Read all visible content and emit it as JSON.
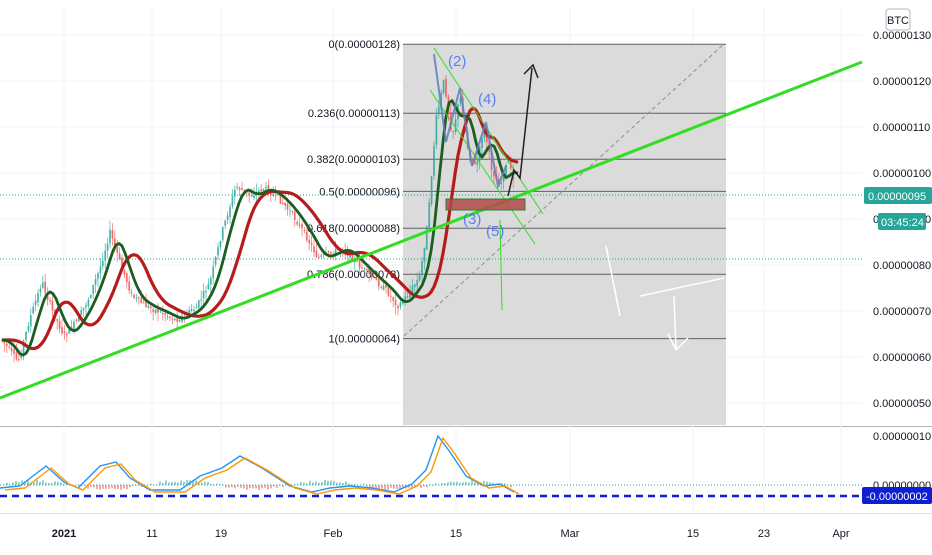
{
  "header": {
    "currency_badge": "BTC"
  },
  "chart_data": [
    {
      "type": "candlestick",
      "ylim": [
        4.5e-07,
        1.33e-06
      ],
      "y_ticks": [
        "0.00000130",
        "0.00000120",
        "0.00000110",
        "0.00000100",
        "0.00000090",
        "0.00000080",
        "0.00000070",
        "0.00000060",
        "0.00000050"
      ],
      "x_ticks": [
        {
          "label": "2021",
          "bold": true
        },
        {
          "label": "11",
          "bold": false
        },
        {
          "label": "19",
          "bold": false
        },
        {
          "label": "Feb",
          "bold": false
        },
        {
          "label": "15",
          "bold": false
        },
        {
          "label": "Mar",
          "bold": false
        },
        {
          "label": "15",
          "bold": false
        },
        {
          "label": "23",
          "bold": false
        },
        {
          "label": "Apr",
          "bold": false
        }
      ],
      "last_price": "0.00000095",
      "countdown": "03:45:24",
      "fib_levels": [
        {
          "ratio": 0,
          "price": 1.28e-06,
          "label": "0(0.00000128)"
        },
        {
          "ratio": 0.236,
          "price": 1.13e-06,
          "label": "0.236(0.00000113)"
        },
        {
          "ratio": 0.382,
          "price": 1.03e-06,
          "label": "0.382(0.00000103)"
        },
        {
          "ratio": 0.5,
          "price": 9.6e-07,
          "label": "0.5(0.00000096)"
        },
        {
          "ratio": 0.618,
          "price": 8.8e-07,
          "label": "0.618(0.00000088)"
        },
        {
          "ratio": 0.786,
          "price": 7.8e-07,
          "label": "0.786(0.00000078)"
        },
        {
          "ratio": 1,
          "price": 6.4e-07,
          "label": "1(0.00000064)"
        }
      ],
      "wave_labels": [
        "(2)",
        "(4)",
        "(3)",
        "(5)"
      ],
      "colors": {
        "trendline": "#33dd22",
        "ma_fast": "#1b5e20",
        "ma_slow": "#b71c1c",
        "bull_candle": "#26a69a",
        "bear_candle": "#ef5350",
        "fib_zone": "#d9d9d9",
        "badge": "#26a69a"
      }
    },
    {
      "type": "line",
      "indicator": "oscillator",
      "y_ticks": [
        "0.00000010",
        "0.00000000"
      ],
      "current_value": "-0.00000002",
      "series": [
        {
          "color": "#2196f3"
        },
        {
          "color": "#ff9800"
        }
      ]
    }
  ]
}
